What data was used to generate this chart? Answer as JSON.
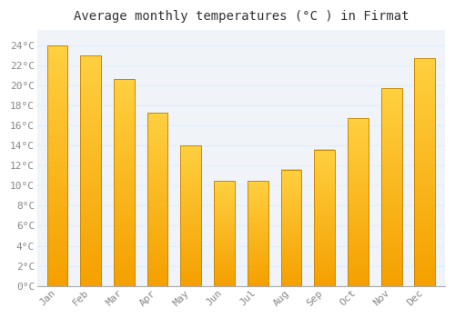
{
  "title": "Average monthly temperatures (°C ) in Firmat",
  "months": [
    "Jan",
    "Feb",
    "Mar",
    "Apr",
    "May",
    "Jun",
    "Jul",
    "Aug",
    "Sep",
    "Oct",
    "Nov",
    "Dec"
  ],
  "values": [
    24.0,
    23.0,
    20.6,
    17.3,
    14.0,
    10.5,
    10.5,
    11.6,
    13.6,
    16.7,
    19.7,
    22.7
  ],
  "bar_color_top": "#FFCC44",
  "bar_color_bottom": "#F5A800",
  "bar_edge_color": "#C8880A",
  "background_color": "#FFFFFF",
  "plot_bg_color": "#F0F4F8",
  "grid_color": "#DDEEFF",
  "ytick_labels": [
    "0°C",
    "2°C",
    "4°C",
    "6°C",
    "8°C",
    "10°C",
    "12°C",
    "14°C",
    "16°C",
    "18°C",
    "20°C",
    "22°C",
    "24°C"
  ],
  "ytick_values": [
    0,
    2,
    4,
    6,
    8,
    10,
    12,
    14,
    16,
    18,
    20,
    22,
    24
  ],
  "ylim": [
    0,
    25.5
  ],
  "title_fontsize": 10,
  "tick_fontsize": 8,
  "tick_color": "#888888",
  "font_family": "monospace"
}
